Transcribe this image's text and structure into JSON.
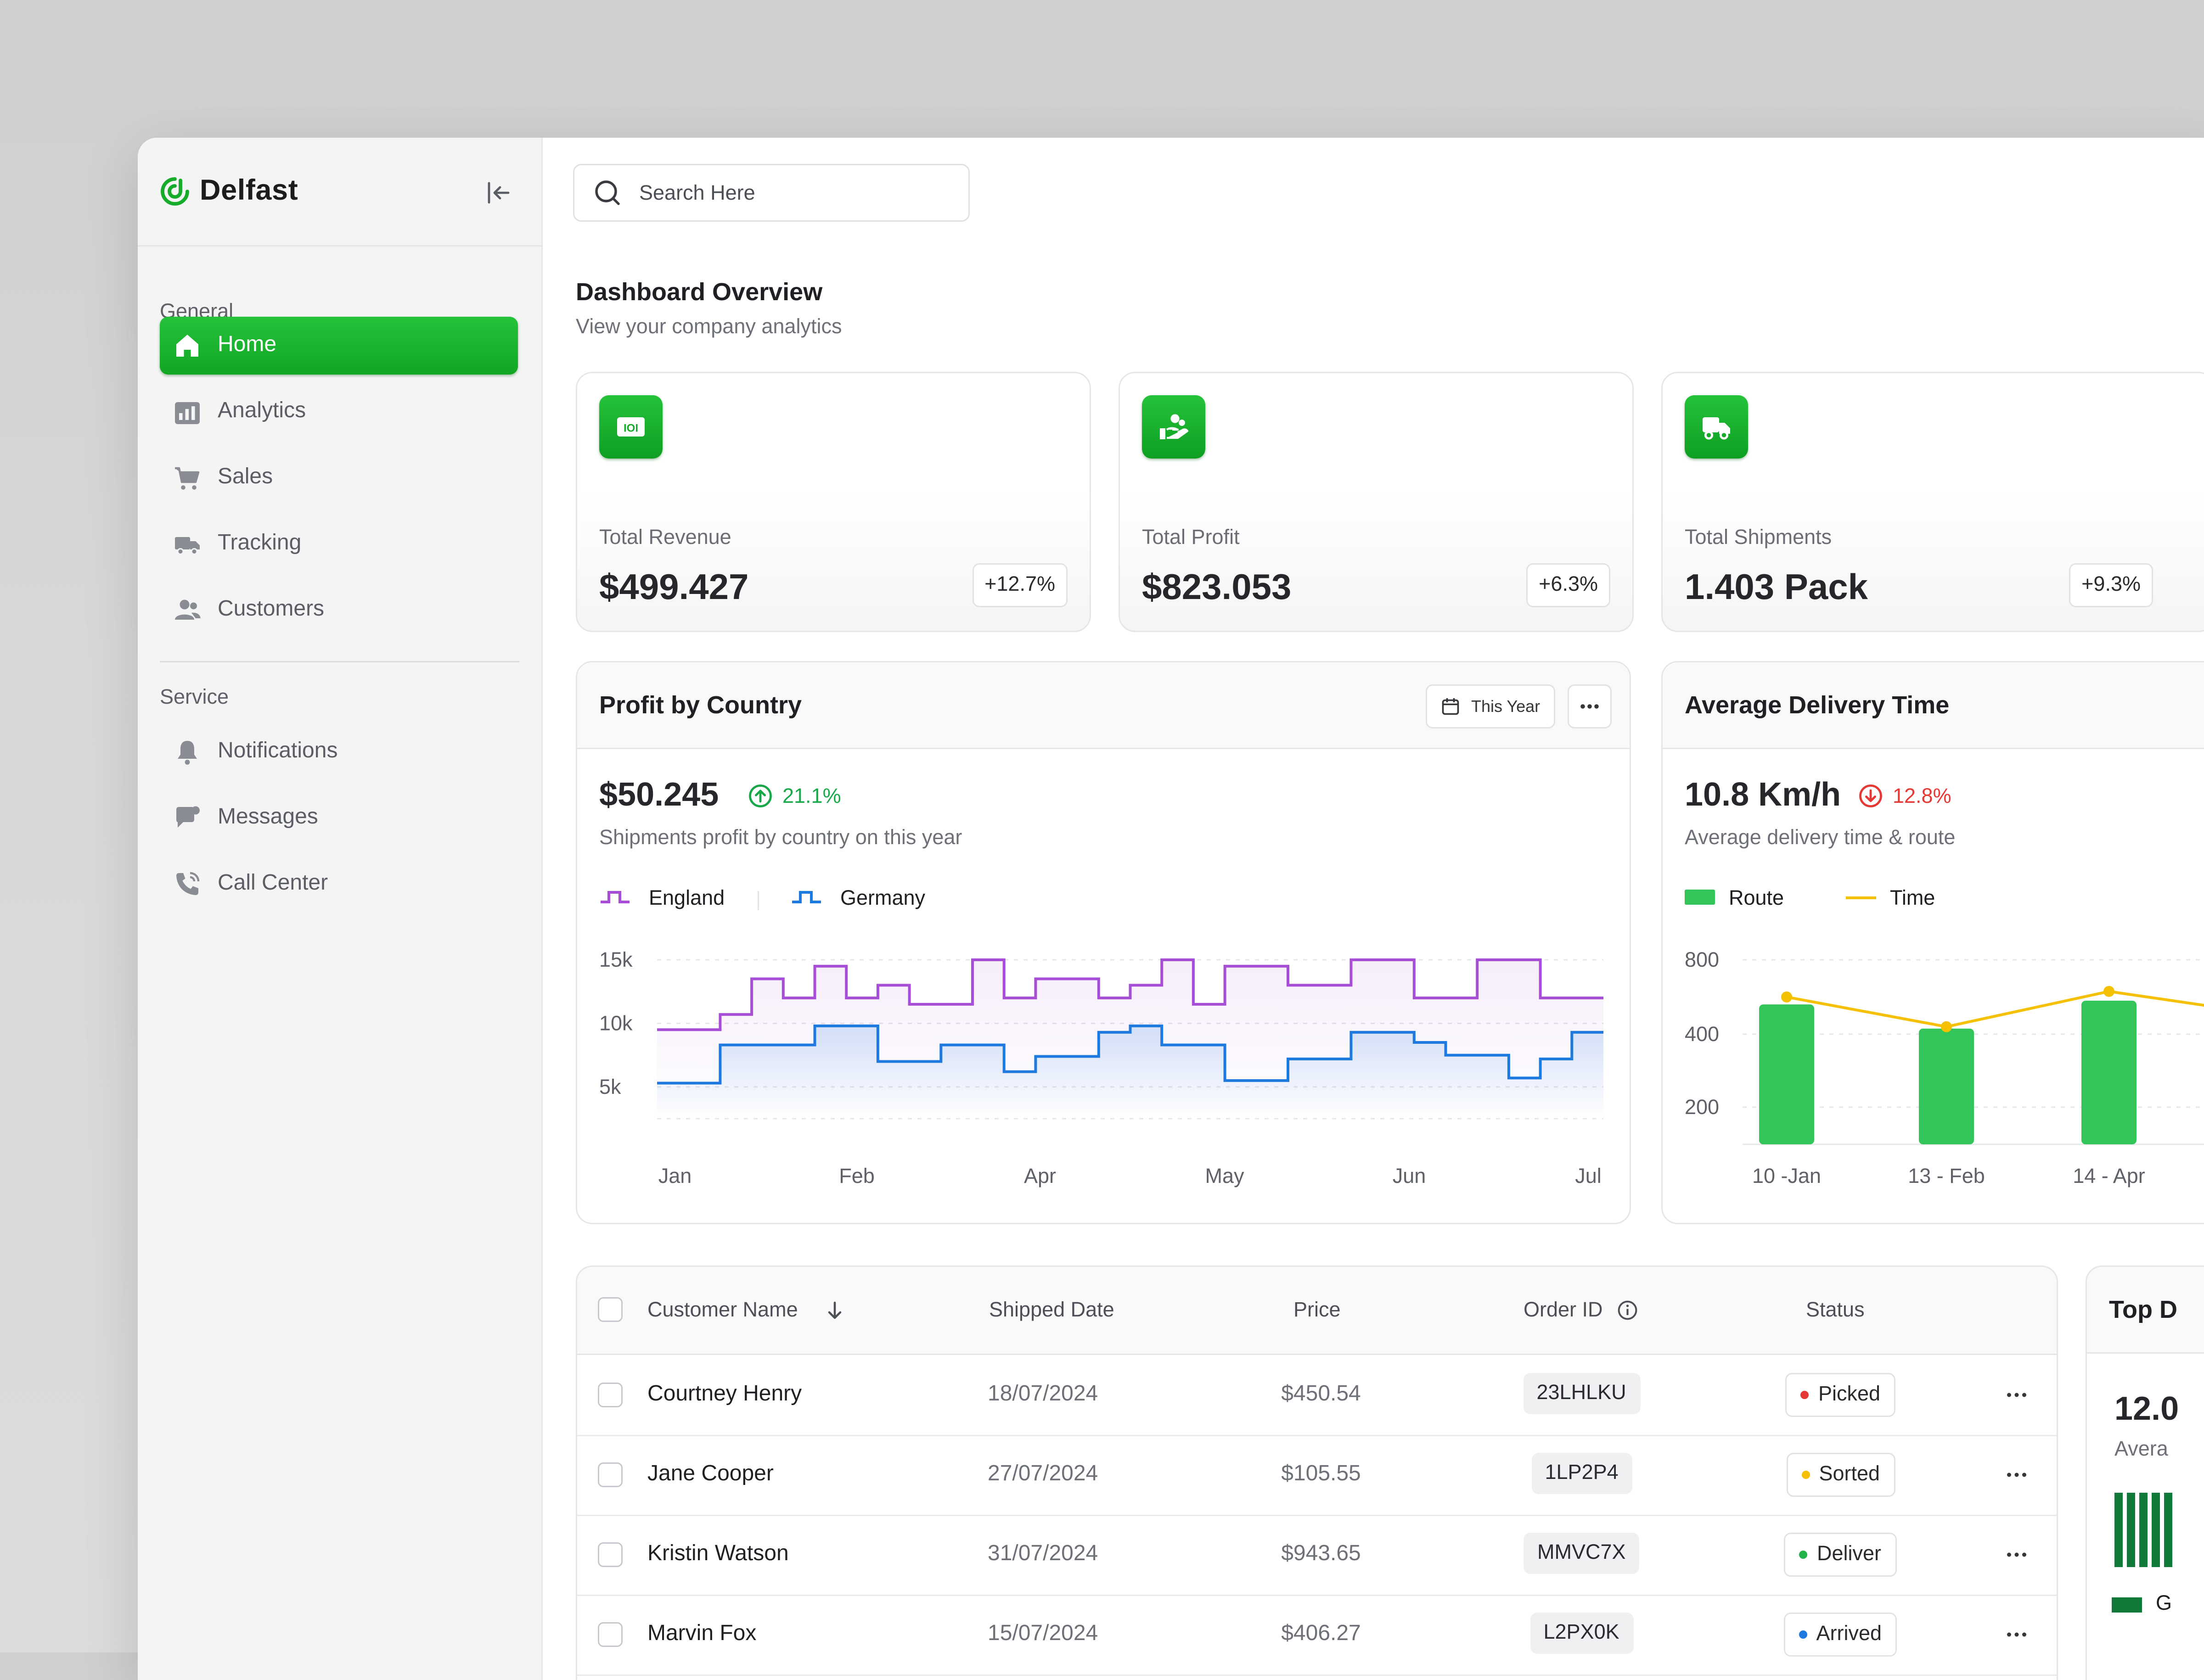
{
  "brand": {
    "name": "Delfast"
  },
  "search": {
    "placeholder": "Search Here"
  },
  "sidebar": {
    "general_title": "General",
    "service_title": "Service",
    "general_items": [
      {
        "label": "Home",
        "icon": "home-icon",
        "active": true
      },
      {
        "label": "Analytics",
        "icon": "analytics-icon"
      },
      {
        "label": "Sales",
        "icon": "cart-icon"
      },
      {
        "label": "Tracking",
        "icon": "truck-icon"
      },
      {
        "label": "Customers",
        "icon": "users-icon"
      }
    ],
    "service_items": [
      {
        "label": "Notifications",
        "icon": "bell-icon"
      },
      {
        "label": "Messages",
        "icon": "chat-icon"
      },
      {
        "label": "Call Center",
        "icon": "phone-icon"
      }
    ]
  },
  "page": {
    "title": "Dashboard Overview",
    "subtitle": "View your company analytics"
  },
  "stats": [
    {
      "label": "Total Revenue",
      "value": "$499.427",
      "change": "+12.7%",
      "icon": "money-icon"
    },
    {
      "label": "Total Profit",
      "value": "$823.053",
      "change": "+6.3%",
      "icon": "hand-user-icon"
    },
    {
      "label": "Total Shipments",
      "value": "1.403 Pack",
      "change": "+9.3%",
      "icon": "truck-icon"
    }
  ],
  "profit_panel": {
    "title": "Profit by Country",
    "filter": "This Year",
    "value": "$50.245",
    "change": "21.1%",
    "subtitle": "Shipments profit by country on this year"
  },
  "delivery_panel": {
    "title": "Average Delivery Time",
    "value": "10.8 Km/h",
    "change": "12.8%",
    "subtitle": "Average delivery time & route"
  },
  "table": {
    "headers": {
      "name": "Customer Name",
      "date": "Shipped Date",
      "price": "Price",
      "order": "Order ID",
      "status": "Status"
    },
    "rows": [
      {
        "name": "Courtney Henry",
        "date": "18/07/2024",
        "price": "$450.54",
        "order": "23LHLKU",
        "status": "Picked"
      },
      {
        "name": "Jane Cooper",
        "date": "27/07/2024",
        "price": "$105.55",
        "order": "1LP2P4",
        "status": "Sorted"
      },
      {
        "name": "Kristin Watson",
        "date": "31/07/2024",
        "price": "$943.65",
        "order": "MMVC7X",
        "status": "Deliver"
      },
      {
        "name": "Marvin Fox",
        "date": "15/07/2024",
        "price": "$406.27",
        "order": "L2PX0K",
        "status": "Arrived"
      }
    ],
    "status_colors": {
      "Picked": "#e53935",
      "Sorted": "#f5c000",
      "Deliver": "#22b34a",
      "Arrived": "#1f7ae0"
    }
  },
  "side_card": {
    "title": "Top D",
    "value": "12.0",
    "sub": "Avera",
    "legend": "G"
  },
  "colors": {
    "accent": "#16ab2a",
    "england": "#a64fd6",
    "germany": "#1f7ae0",
    "route": "#34c55a",
    "time": "#f5c000",
    "up": "#18a84a",
    "down": "#e53935"
  },
  "chart_data": [
    {
      "type": "line",
      "step": true,
      "x_ticks": [
        "Jan",
        "Feb",
        "Apr",
        "May",
        "Jun",
        "Jul"
      ],
      "y_ticks": [
        "15k",
        "10k",
        "5k"
      ],
      "ylim": [
        2000,
        15000
      ],
      "xlim": [
        0,
        30
      ],
      "series": [
        {
          "name": "England",
          "color": "#a64fd6",
          "x": [
            0,
            1,
            2,
            3,
            4,
            5,
            6,
            7,
            8,
            9,
            10,
            11,
            12,
            13,
            14,
            15,
            16,
            17,
            18,
            19,
            20,
            21,
            22,
            23,
            24,
            25,
            26,
            27,
            28,
            29,
            30
          ],
          "values": [
            9500,
            9500,
            10700,
            13500,
            12000,
            14500,
            12000,
            13000,
            11500,
            11500,
            15000,
            12000,
            13500,
            13500,
            12000,
            13000,
            15000,
            11500,
            14500,
            14500,
            13000,
            13000,
            15000,
            15000,
            12000,
            12000,
            15000,
            15000,
            12000,
            12000,
            12000
          ]
        },
        {
          "name": "Germany",
          "color": "#1f7ae0",
          "x": [
            0,
            1,
            2,
            3,
            4,
            5,
            6,
            7,
            8,
            9,
            10,
            11,
            12,
            13,
            14,
            15,
            16,
            17,
            18,
            19,
            20,
            21,
            22,
            23,
            24,
            25,
            26,
            27,
            28,
            29,
            30
          ],
          "values": [
            5300,
            5300,
            8300,
            8300,
            8300,
            9800,
            9800,
            7000,
            7000,
            8300,
            8300,
            6200,
            7400,
            7400,
            9300,
            9800,
            8300,
            8300,
            5500,
            5500,
            7200,
            7200,
            9300,
            9300,
            8500,
            7500,
            7500,
            5700,
            7200,
            9300,
            9300
          ]
        }
      ]
    },
    {
      "type": "bar",
      "categories": [
        "10 -Jan",
        "13 - Feb",
        "14 - Apr"
      ],
      "y_ticks": [
        "800",
        "400",
        "200"
      ],
      "ylim": [
        0,
        800
      ],
      "series": [
        {
          "name": "Route",
          "type": "bar",
          "color": "#34c55a",
          "values": [
            560,
            430,
            580
          ]
        },
        {
          "name": "Time",
          "type": "line",
          "color": "#f5c000",
          "values": [
            600,
            440,
            630
          ]
        }
      ]
    }
  ]
}
